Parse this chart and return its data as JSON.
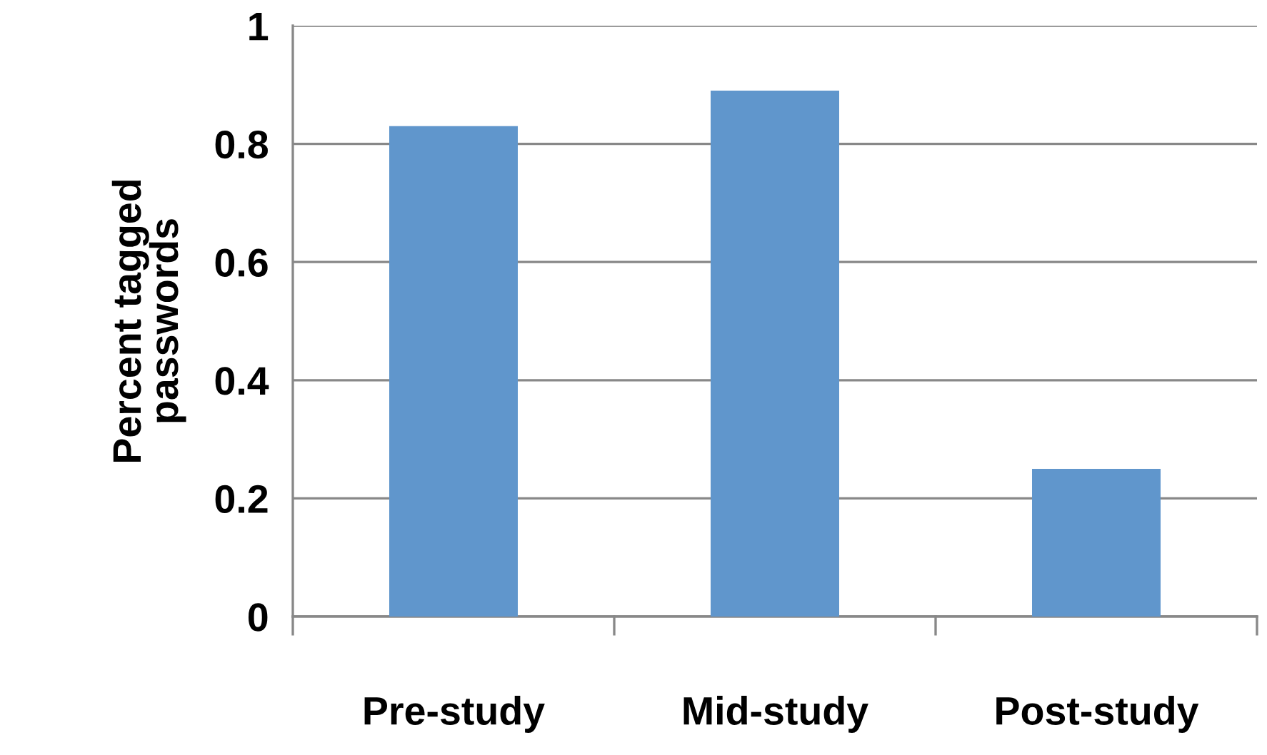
{
  "chart_data": {
    "type": "bar",
    "ylabel": "Percent tagged\npasswords",
    "categories": [
      "Pre-study",
      "Mid-study",
      "Post-study"
    ],
    "values": [
      0.83,
      0.89,
      0.25
    ],
    "color": "#6096cc",
    "ylim": [
      0,
      1
    ],
    "yticks": [
      0,
      0.2,
      0.4,
      0.6,
      0.8,
      1
    ],
    "grid": "y",
    "legend": false
  }
}
